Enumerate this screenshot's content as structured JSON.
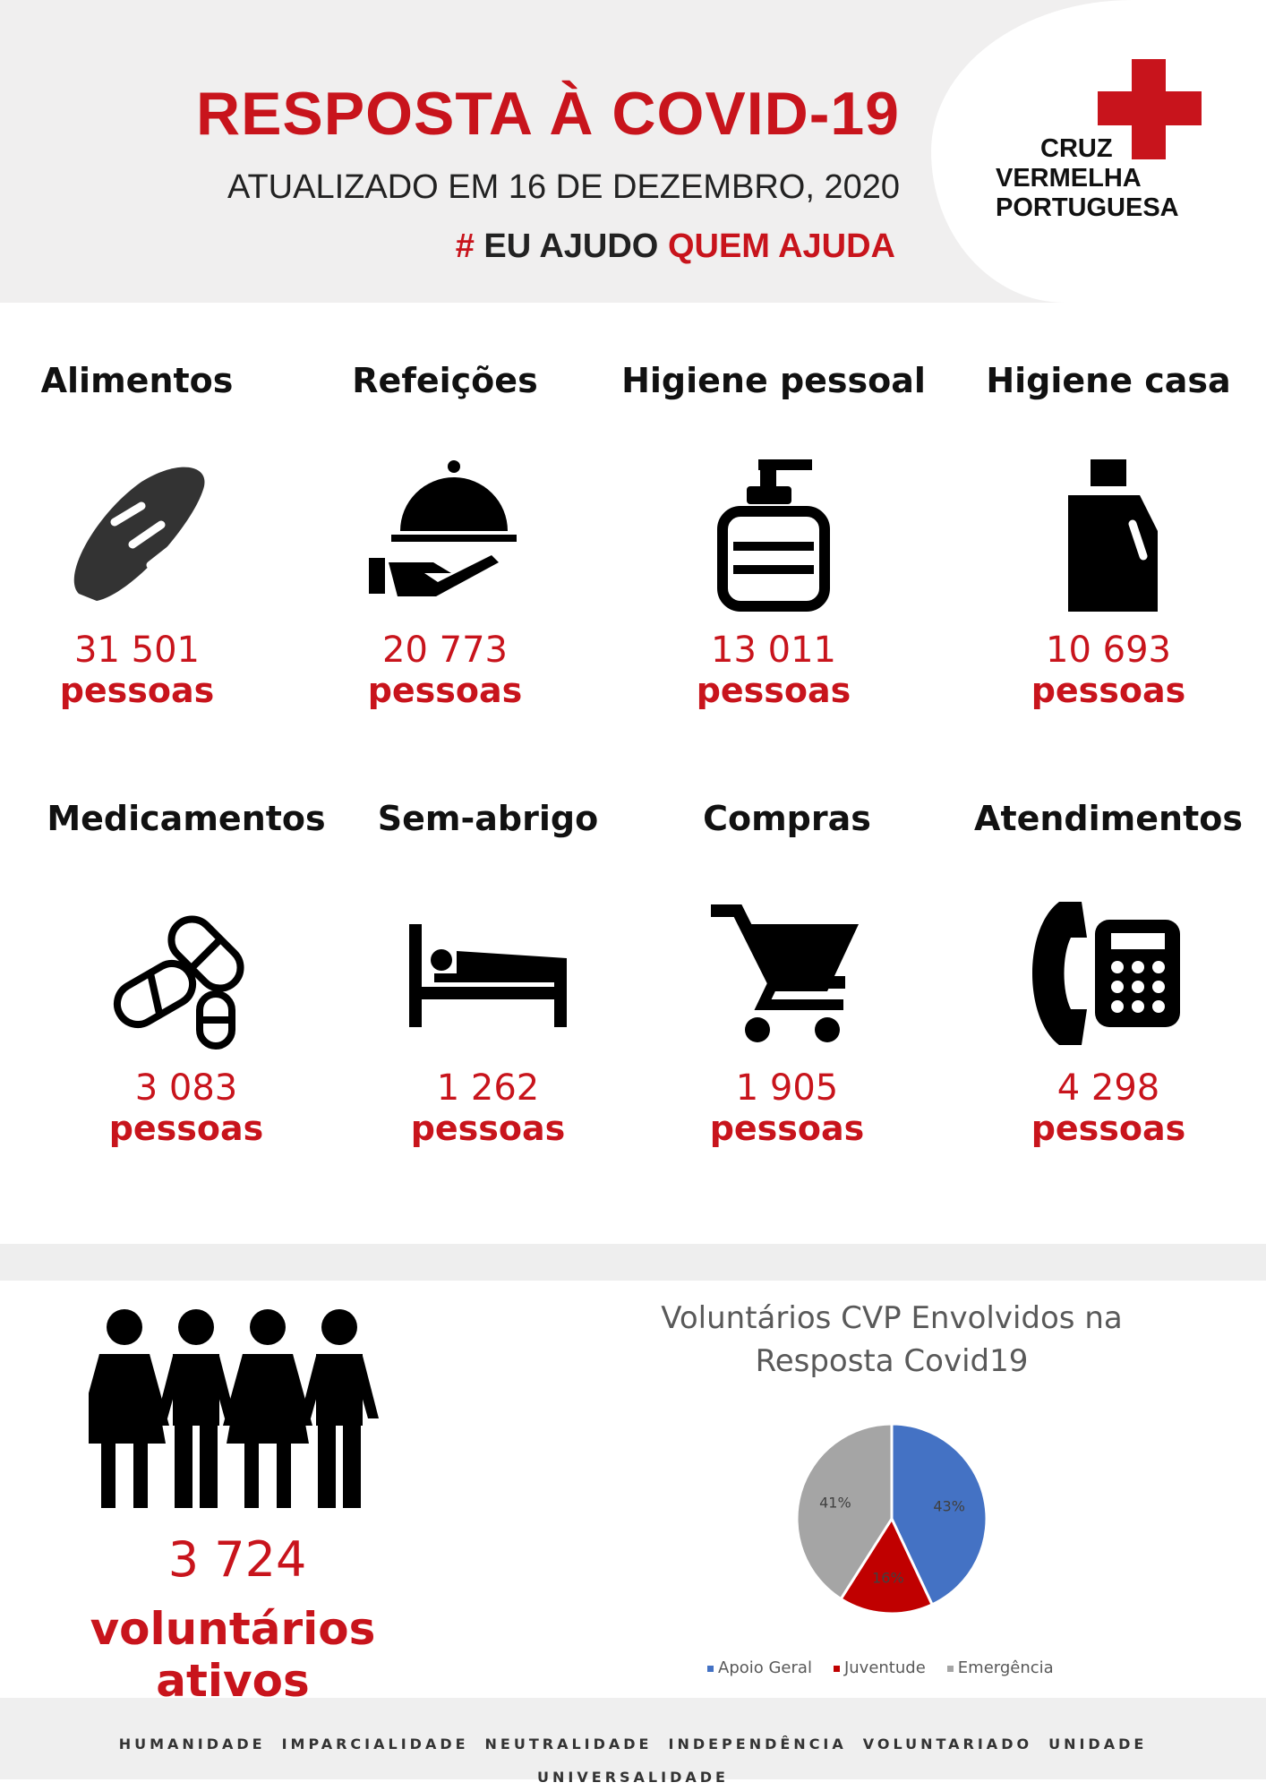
{
  "header": {
    "title": "RESPOSTA À COVID-19",
    "updated": "ATUALIZADO EM 16 DE DEZEMBRO, 2020",
    "hashtag_mark": "#",
    "hashtag_dark": "EU AJUDO",
    "hashtag_red": "QUEM AJUDA"
  },
  "logo": {
    "line1": "CRUZ",
    "line2": "VERMELHA",
    "line3": "PORTUGUESA"
  },
  "stats": [
    {
      "label": "Alimentos",
      "value": "31 501",
      "unit": "pessoas",
      "icon": "bread-icon"
    },
    {
      "label": "Refeições",
      "value": "20 773",
      "unit": "pessoas",
      "icon": "cloche-hand-icon"
    },
    {
      "label": "Higiene pessoal",
      "value": "13 011",
      "unit": "pessoas",
      "icon": "soap-dispenser-icon"
    },
    {
      "label": "Higiene casa",
      "value": "10 693",
      "unit": "pessoas",
      "icon": "detergent-bottle-icon"
    },
    {
      "label": "Medicamentos",
      "value": "3 083",
      "unit": "pessoas",
      "icon": "pills-icon"
    },
    {
      "label": "Sem-abrigo",
      "value": "1 262",
      "unit": "pessoas",
      "icon": "bed-icon"
    },
    {
      "label": "Compras",
      "value": "1 905",
      "unit": "pessoas",
      "icon": "shopping-cart-icon"
    },
    {
      "label": "Atendimentos",
      "value": "4 298",
      "unit": "pessoas",
      "icon": "telephone-icon"
    }
  ],
  "volunteers": {
    "value": "3 724",
    "label": "voluntários ativos"
  },
  "chart_data": {
    "type": "pie",
    "title": "Voluntários CVP Envolvidos na Resposta Covid19",
    "title_lines": [
      "Voluntários CVP Envolvidos na",
      "Resposta Covid19"
    ],
    "categories": [
      "Apoio Geral",
      "Juventude",
      "Emergência"
    ],
    "values": [
      43,
      16,
      41
    ],
    "labels": [
      "43%",
      "16%",
      "41%"
    ],
    "colors": [
      "#4472c4",
      "#c00000",
      "#a5a5a5"
    ],
    "legend": "bottom"
  },
  "footer": [
    "HUMANIDADE",
    "IMPARCIALIDADE",
    "NEUTRALIDADE",
    "INDEPENDÊNCIA",
    "VOLUNTARIADO",
    "UNIDADE",
    "UNIVERSALIDADE"
  ],
  "colors": {
    "accent": "#c8141c"
  }
}
